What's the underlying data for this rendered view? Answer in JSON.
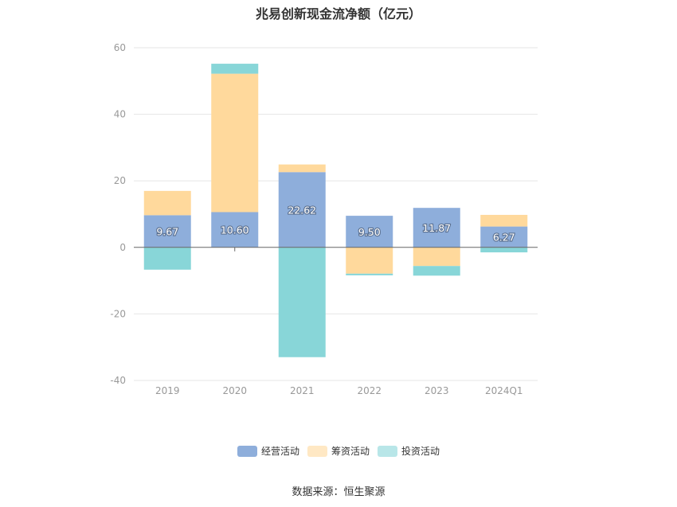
{
  "title": "兆易创新现金流净额（亿元）",
  "source": "数据来源：恒生聚源",
  "colors": {
    "operating": "#8eaedb",
    "financing": "#ffd99c",
    "investing": "#88d6d8",
    "grid": "#e6e6e6",
    "axis": "#666666",
    "tick_text": "#999999"
  },
  "chart_data": {
    "type": "bar",
    "stacked": true,
    "categories": [
      "2019",
      "2020",
      "2021",
      "2022",
      "2023",
      "2024Q1"
    ],
    "ylim": [
      -40,
      60
    ],
    "yticks": [
      -40,
      -20,
      0,
      20,
      40,
      60
    ],
    "grid": true,
    "legend_position": "bottom",
    "series": [
      {
        "name": "经营活动",
        "color": "#8eaedb",
        "values": [
          9.67,
          10.6,
          22.62,
          9.5,
          11.87,
          6.27
        ],
        "labels": [
          "9.67",
          "10.60",
          "22.62",
          "9.50",
          "11.87",
          "6.27"
        ]
      },
      {
        "name": "筹资活动",
        "color": "#ffd99c",
        "values": [
          7.3,
          41.6,
          2.3,
          -7.9,
          -5.6,
          3.5
        ]
      },
      {
        "name": "投资活动",
        "color": "#88d6d8",
        "values": [
          -6.7,
          3.0,
          -33.0,
          -0.5,
          -2.9,
          -1.5
        ]
      }
    ]
  }
}
